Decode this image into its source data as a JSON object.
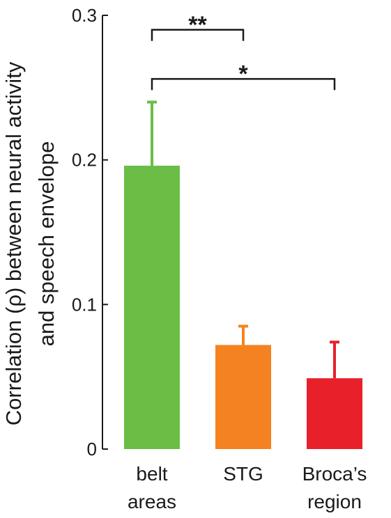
{
  "chart_data": {
    "type": "bar",
    "categories": [
      [
        "belt",
        "areas"
      ],
      [
        "STG"
      ],
      [
        "Broca’s",
        "region"
      ]
    ],
    "values": [
      0.196,
      0.072,
      0.049
    ],
    "error_upper": [
      0.24,
      0.085,
      0.074
    ],
    "colors": [
      "#6bbd45",
      "#f58220",
      "#e8202a"
    ],
    "ylabel": [
      "Correlation (ρ) between neural activity",
      "and speech envelope"
    ],
    "ylim": [
      0,
      0.3
    ],
    "yticks": [
      {
        "value": 0,
        "label": "0"
      },
      {
        "value": 0.1,
        "label": "0.1"
      },
      {
        "value": 0.2,
        "label": "0.2"
      },
      {
        "value": 0.3,
        "label": "0.3"
      }
    ],
    "significance": [
      {
        "from": 0,
        "to": 1,
        "label": "**",
        "level": 0.29
      },
      {
        "from": 0,
        "to": 2,
        "label": "*",
        "level": 0.256
      }
    ],
    "grid": false,
    "legend": "none"
  }
}
